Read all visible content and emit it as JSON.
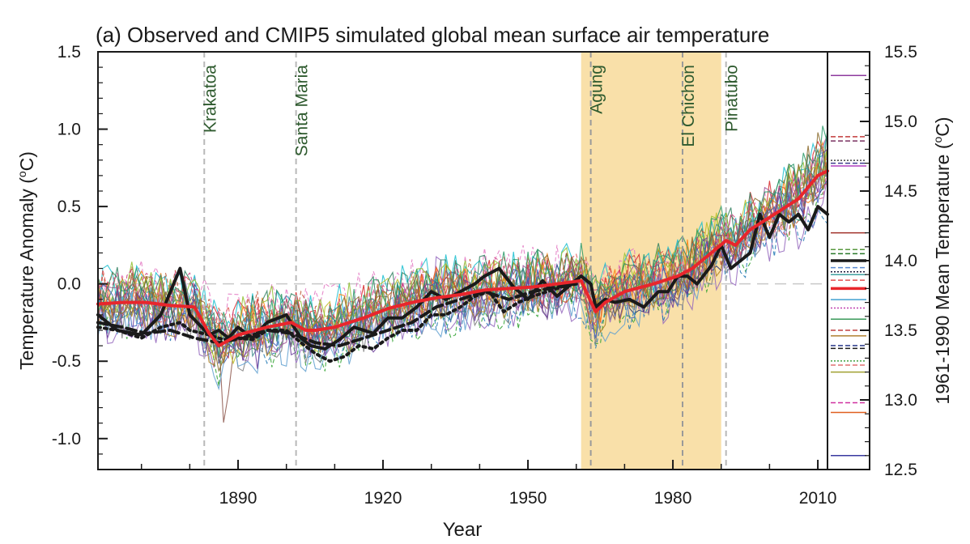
{
  "chart_data": {
    "type": "line",
    "title": "(a) Observed and CMIP5 simulated global mean surface air temperature",
    "xlabel": "Year",
    "ylabel": "Temperature Anomaly (°C)",
    "ylabel_parts": [
      "Temperature Anomaly (",
      "o",
      "C)"
    ],
    "y2label_parts": [
      "1961-1990 Mean Temperature (",
      "o",
      "C)"
    ],
    "xlim": [
      1861,
      2012
    ],
    "ylim": [
      -1.2,
      1.5
    ],
    "y2lim": [
      12.5,
      15.5
    ],
    "xticks": [
      1890,
      1920,
      1950,
      1980,
      2010
    ],
    "xtick_labels": [
      "1890",
      "1920",
      "1950",
      "1980",
      "2010"
    ],
    "yticks": [
      -1.0,
      -0.5,
      0.0,
      0.5,
      1.0,
      1.5
    ],
    "ytick_labels": [
      "-1.0",
      "-0.5",
      "0.0",
      "0.5",
      "1.0",
      "1.5"
    ],
    "y2ticks": [
      12.5,
      13.0,
      13.5,
      14.0,
      14.5,
      15.0,
      15.5
    ],
    "y2tick_labels": [
      "12.5",
      "13.0",
      "13.5",
      "14.0",
      "14.5",
      "15.0",
      "15.5"
    ],
    "zero_line": 0.0,
    "shaded_period": [
      1961,
      1990
    ],
    "shade_color": "#f9e0a9",
    "volcanoes": [
      {
        "name": "Krakatoa",
        "year": 1883
      },
      {
        "name": "Santa Maria",
        "year": 1902
      },
      {
        "name": "Agung",
        "year": 1963
      },
      {
        "name": "El Chichon",
        "year": 1982
      },
      {
        "name": "Pinatubo",
        "year": 1991
      }
    ],
    "volcano_label_color": "#2e5a2e",
    "series": [
      {
        "style": "thick-solid",
        "color": "#1a1a1a",
        "x": [
          1861,
          1865,
          1870,
          1874,
          1878,
          1880,
          1884,
          1886,
          1888,
          1890,
          1893,
          1896,
          1900,
          1903,
          1905,
          1908,
          1911,
          1914,
          1918,
          1921,
          1924,
          1927,
          1930,
          1933,
          1936,
          1939,
          1941,
          1944,
          1947,
          1950,
          1953,
          1956,
          1959,
          1961,
          1963,
          1964,
          1966,
          1968,
          1971,
          1974,
          1977,
          1979,
          1981,
          1983,
          1985,
          1988,
          1990,
          1992,
          1994,
          1996,
          1998,
          2000,
          2002,
          2004,
          2006,
          2008,
          2010,
          2012
        ],
        "y": [
          -0.2,
          -0.3,
          -0.33,
          -0.2,
          0.1,
          -0.2,
          -0.33,
          -0.3,
          -0.35,
          -0.28,
          -0.35,
          -0.25,
          -0.2,
          -0.35,
          -0.4,
          -0.42,
          -0.36,
          -0.28,
          -0.32,
          -0.22,
          -0.22,
          -0.15,
          -0.05,
          -0.1,
          -0.05,
          0.0,
          0.05,
          0.1,
          -0.02,
          -0.1,
          0.02,
          -0.08,
          0.0,
          0.05,
          0.0,
          -0.15,
          -0.1,
          -0.12,
          -0.1,
          -0.15,
          -0.05,
          -0.05,
          0.05,
          0.05,
          0.0,
          0.12,
          0.25,
          0.1,
          0.15,
          0.2,
          0.45,
          0.3,
          0.45,
          0.4,
          0.45,
          0.35,
          0.5,
          0.45
        ]
      },
      {
        "style": "thick-dotted",
        "color": "#1a1a1a",
        "x": [
          1861,
          1865,
          1870,
          1874,
          1878,
          1880,
          1884,
          1887,
          1890,
          1893,
          1896,
          1900,
          1903,
          1906,
          1909,
          1912,
          1915,
          1918,
          1921,
          1924,
          1927,
          1930,
          1933,
          1936,
          1939,
          1942,
          1945,
          1948,
          1951,
          1954,
          1957,
          1960
        ],
        "y": [
          -0.28,
          -0.3,
          -0.35,
          -0.28,
          -0.25,
          -0.3,
          -0.33,
          -0.36,
          -0.35,
          -0.36,
          -0.3,
          -0.3,
          -0.38,
          -0.45,
          -0.5,
          -0.47,
          -0.4,
          -0.42,
          -0.35,
          -0.3,
          -0.3,
          -0.2,
          -0.2,
          -0.15,
          -0.08,
          -0.05,
          -0.18,
          -0.12,
          -0.08,
          -0.05,
          -0.02,
          0.0
        ]
      },
      {
        "style": "thick-dashed",
        "color": "#1a1a1a",
        "x": [
          1861,
          1866,
          1871,
          1876,
          1881,
          1886,
          1891,
          1896,
          1901,
          1906,
          1911,
          1916,
          1921,
          1926,
          1931,
          1936,
          1941,
          1946,
          1951,
          1956,
          1960
        ],
        "y": [
          -0.25,
          -0.28,
          -0.32,
          -0.3,
          -0.35,
          -0.38,
          -0.35,
          -0.3,
          -0.32,
          -0.38,
          -0.4,
          -0.35,
          -0.3,
          -0.25,
          -0.15,
          -0.1,
          -0.05,
          -0.1,
          -0.05,
          -0.02,
          0.0
        ]
      },
      {
        "style": "thick-solid",
        "color": "#e8262c",
        "x": [
          1861,
          1866,
          1871,
          1876,
          1881,
          1884,
          1886,
          1890,
          1896,
          1901,
          1904,
          1906,
          1910,
          1916,
          1921,
          1926,
          1931,
          1936,
          1941,
          1946,
          1951,
          1956,
          1961,
          1964,
          1966,
          1970,
          1976,
          1981,
          1984,
          1986,
          1991,
          1993,
          1996,
          2001,
          2006,
          2010,
          2012
        ],
        "y": [
          -0.13,
          -0.12,
          -0.12,
          -0.14,
          -0.15,
          -0.32,
          -0.4,
          -0.33,
          -0.28,
          -0.25,
          -0.3,
          -0.3,
          -0.28,
          -0.22,
          -0.16,
          -0.12,
          -0.09,
          -0.07,
          -0.04,
          -0.03,
          -0.02,
          0.0,
          0.02,
          -0.18,
          -0.12,
          -0.05,
          0.0,
          0.05,
          0.1,
          0.15,
          0.28,
          0.25,
          0.35,
          0.45,
          0.55,
          0.7,
          0.73
        ]
      }
    ],
    "right_panel_levels": [
      {
        "value": 15.33,
        "color": "#8e3a9e",
        "style": "solid"
      },
      {
        "value": 14.89,
        "color": "#c23a3a",
        "style": "dashed"
      },
      {
        "value": 14.86,
        "color": "#7a3060",
        "style": "dashed"
      },
      {
        "value": 14.72,
        "color": "#444444",
        "style": "dotted"
      },
      {
        "value": 14.7,
        "color": "#3c3c8c",
        "style": "dashed"
      },
      {
        "value": 14.68,
        "color": "#b040c0",
        "style": "solid"
      },
      {
        "value": 14.2,
        "color": "#a0302a",
        "style": "solid"
      },
      {
        "value": 14.08,
        "color": "#5a9a40",
        "style": "dashed"
      },
      {
        "value": 14.05,
        "color": "#2a7a2a",
        "style": "dashed"
      },
      {
        "value": 13.95,
        "color": "#5a8ad0",
        "style": "dashed"
      },
      {
        "value": 14.0,
        "color": "#1a1a1a",
        "style": "thick"
      },
      {
        "value": 13.92,
        "color": "#1a1a3a",
        "style": "dotted"
      },
      {
        "value": 13.9,
        "color": "#40a0a0",
        "style": "solid"
      },
      {
        "value": 13.86,
        "color": "#e05050",
        "style": "dashed"
      },
      {
        "value": 13.8,
        "color": "#e8262c",
        "style": "thick"
      },
      {
        "value": 13.72,
        "color": "#40a0d0",
        "style": "solid"
      },
      {
        "value": 13.66,
        "color": "#c040b0",
        "style": "dotted"
      },
      {
        "value": 13.58,
        "color": "#3a9a5a",
        "style": "solid"
      },
      {
        "value": 13.5,
        "color": "#c04040",
        "style": "dashed"
      },
      {
        "value": 13.46,
        "color": "#b08030",
        "style": "solid"
      },
      {
        "value": 13.39,
        "color": "#2a3a8a",
        "style": "dashed"
      },
      {
        "value": 13.37,
        "color": "#1a1a1a",
        "style": "dashed"
      },
      {
        "value": 13.28,
        "color": "#40a040",
        "style": "dotted"
      },
      {
        "value": 13.25,
        "color": "#e07070",
        "style": "dashed"
      },
      {
        "value": 13.2,
        "color": "#a0a030",
        "style": "solid"
      },
      {
        "value": 12.98,
        "color": "#d030a0",
        "style": "dashed"
      },
      {
        "value": 12.91,
        "color": "#e06020",
        "style": "solid"
      },
      {
        "value": 12.6,
        "color": "#3a3aa0",
        "style": "solid"
      }
    ],
    "ensemble_colors": [
      "#1f2e7a",
      "#2ca02c",
      "#d62728",
      "#9467bd",
      "#8c564b",
      "#e377c2",
      "#17becf",
      "#bcbd22",
      "#ff7f0e",
      "#1f77b4",
      "#7f7f7f",
      "#a05195",
      "#2f7f5f",
      "#c05030",
      "#4060c0",
      "#60a0d0",
      "#90c030",
      "#d04080",
      "#3a8a8a",
      "#b08020",
      "#6a3a9a",
      "#e05050",
      "#2a9a6a",
      "#8a6a2a"
    ]
  }
}
